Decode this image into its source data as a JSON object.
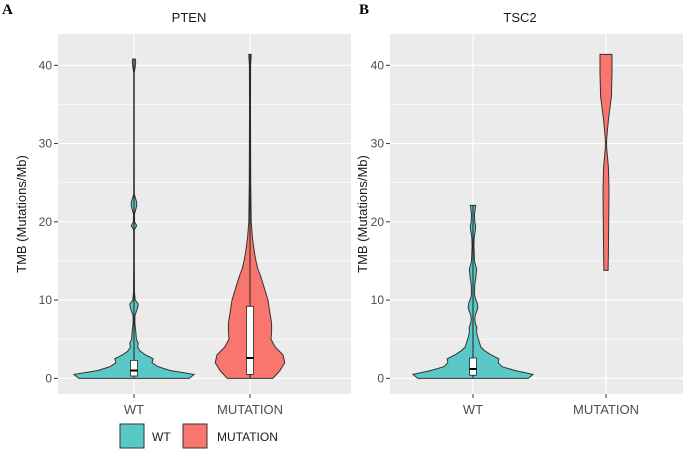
{
  "chart_data": [
    {
      "type": "violin",
      "panel_letter": "A",
      "title": "PTEN",
      "xlabel": "",
      "ylabel": "TMB (Mutations/Mb)",
      "ylim": [
        -2,
        44
      ],
      "yticks": [
        0,
        10,
        20,
        30,
        40
      ],
      "grid": true,
      "categories": [
        "WT",
        "MUTATION"
      ],
      "series": [
        {
          "name": "WT",
          "color": "#5BC8C8",
          "y_min": 0.0,
          "y_max": 40.8,
          "profile": [
            [
              0,
              0.92
            ],
            [
              0.5,
              1.0
            ],
            [
              1,
              0.6
            ],
            [
              1.5,
              0.4
            ],
            [
              2,
              0.3
            ],
            [
              2.5,
              0.32
            ],
            [
              3,
              0.19
            ],
            [
              3.5,
              0.1
            ],
            [
              4,
              0.06
            ],
            [
              4.5,
              0.07
            ],
            [
              5,
              0.04
            ],
            [
              6,
              0.03
            ],
            [
              7,
              0.015
            ],
            [
              8,
              0.015
            ],
            [
              9,
              0.06
            ],
            [
              9.5,
              0.07
            ],
            [
              10,
              0.02
            ],
            [
              11,
              0.008
            ],
            [
              15,
              0.005
            ],
            [
              19,
              0.006
            ],
            [
              19.5,
              0.045
            ],
            [
              20,
              0.01
            ],
            [
              21,
              0.008
            ],
            [
              22,
              0.045
            ],
            [
              22.5,
              0.045
            ],
            [
              23.5,
              0.005
            ],
            [
              30,
              0.004
            ],
            [
              39,
              0.004
            ],
            [
              40.3,
              0.028
            ],
            [
              40.8,
              0.022
            ]
          ],
          "box": {
            "q1": 0.3,
            "median": 1.0,
            "q3": 2.3
          }
        },
        {
          "name": "MUTATION",
          "color": "#F8766D",
          "y_min": 0.0,
          "y_max": 41.4,
          "profile": [
            [
              0,
              0.38
            ],
            [
              1,
              0.5
            ],
            [
              2,
              0.58
            ],
            [
              3,
              0.55
            ],
            [
              4,
              0.42
            ],
            [
              5,
              0.35
            ],
            [
              6,
              0.36
            ],
            [
              7,
              0.36
            ],
            [
              8,
              0.34
            ],
            [
              9,
              0.32
            ],
            [
              10,
              0.3
            ],
            [
              11,
              0.26
            ],
            [
              12,
              0.22
            ],
            [
              13,
              0.18
            ],
            [
              14,
              0.13
            ],
            [
              15,
              0.1
            ],
            [
              16,
              0.075
            ],
            [
              18,
              0.04
            ],
            [
              20,
              0.02
            ],
            [
              25,
              0.012
            ],
            [
              30,
              0.01
            ],
            [
              35,
              0.008
            ],
            [
              40,
              0.01
            ],
            [
              41.4,
              0.02
            ]
          ],
          "box": {
            "q1": 0.5,
            "median": 2.6,
            "q3": 9.2
          }
        }
      ]
    },
    {
      "type": "violin",
      "panel_letter": "B",
      "title": "TSC2",
      "xlabel": "",
      "ylabel": "TMB (Mutations/Mb)",
      "ylim": [
        -2,
        44
      ],
      "yticks": [
        0,
        10,
        20,
        30,
        40
      ],
      "grid": true,
      "categories": [
        "WT",
        "MUTATION"
      ],
      "series": [
        {
          "name": "WT",
          "color": "#5BC8C8",
          "y_min": 0.0,
          "y_max": 22.1,
          "profile": [
            [
              0,
              0.92
            ],
            [
              0.5,
              1.0
            ],
            [
              1,
              0.7
            ],
            [
              1.5,
              0.48
            ],
            [
              2,
              0.42
            ],
            [
              2.5,
              0.43
            ],
            [
              3,
              0.3
            ],
            [
              3.5,
              0.2
            ],
            [
              4,
              0.13
            ],
            [
              4.5,
              0.11
            ],
            [
              5,
              0.09
            ],
            [
              5.5,
              0.07
            ],
            [
              6,
              0.06
            ],
            [
              6.5,
              0.065
            ],
            [
              7,
              0.04
            ],
            [
              7.5,
              0.03
            ],
            [
              8,
              0.035
            ],
            [
              8.5,
              0.06
            ],
            [
              9,
              0.08
            ],
            [
              9.5,
              0.075
            ],
            [
              10,
              0.05
            ],
            [
              10.5,
              0.03
            ],
            [
              11,
              0.025
            ],
            [
              12,
              0.03
            ],
            [
              13,
              0.05
            ],
            [
              14,
              0.06
            ],
            [
              14.5,
              0.04
            ],
            [
              15,
              0.025
            ],
            [
              16,
              0.02
            ],
            [
              17,
              0.015
            ],
            [
              18,
              0.02
            ],
            [
              19,
              0.04
            ],
            [
              19.5,
              0.045
            ],
            [
              20,
              0.03
            ],
            [
              21,
              0.025
            ],
            [
              21.5,
              0.035
            ],
            [
              22.1,
              0.045
            ]
          ],
          "box": {
            "q1": 0.4,
            "median": 1.2,
            "q3": 2.6
          }
        },
        {
          "name": "MUTATION",
          "color": "#F8766D",
          "y_min": 13.8,
          "y_max": 41.4,
          "profile": [
            [
              13.8,
              0.035
            ],
            [
              16,
              0.04
            ],
            [
              20,
              0.045
            ],
            [
              24,
              0.05
            ],
            [
              27,
              0.04
            ],
            [
              29.5,
              0.01
            ],
            [
              30.5,
              0.01
            ],
            [
              33,
              0.04
            ],
            [
              36,
              0.09
            ],
            [
              39,
              0.1
            ],
            [
              41.4,
              0.1
            ]
          ],
          "box": null
        }
      ]
    }
  ],
  "legend": {
    "items": [
      {
        "label": "WT",
        "color": "#5BC8C8"
      },
      {
        "label": "MUTATION",
        "color": "#F8766D"
      }
    ]
  },
  "colors": {
    "panel_bg": "#EBEBEB",
    "grid": "#FFFFFF",
    "outline": "#333333"
  }
}
